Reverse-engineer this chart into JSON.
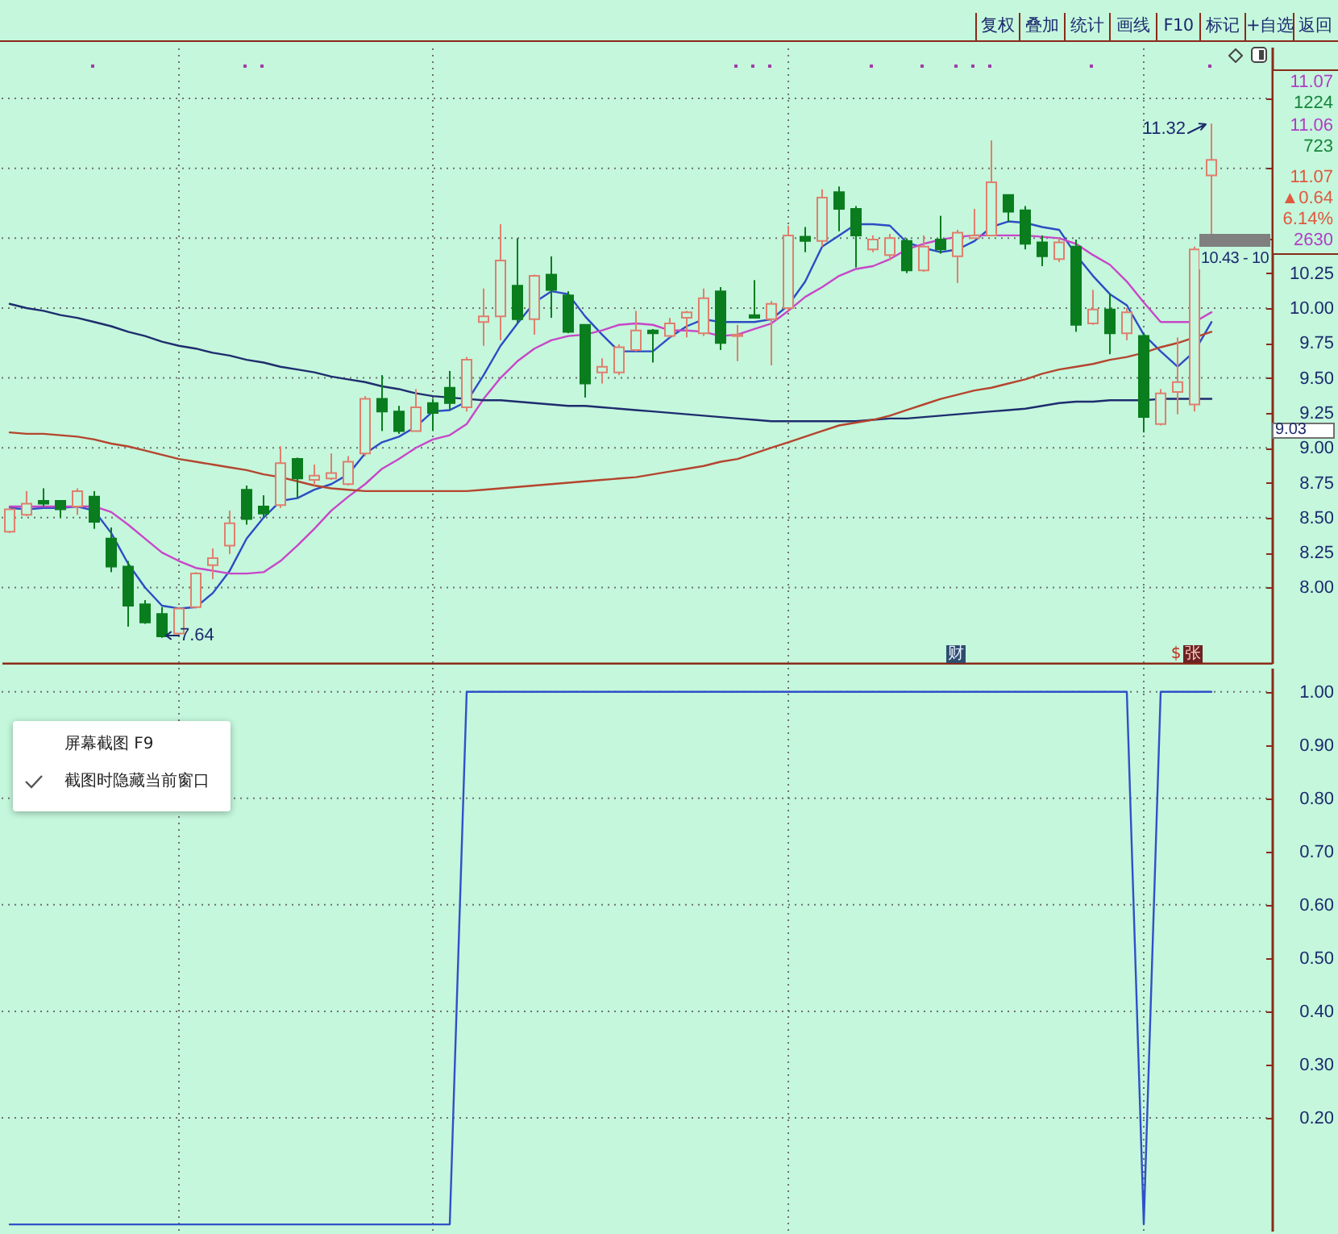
{
  "chart_data": [
    {
      "type": "candlestick",
      "categories": [
        null,
        null,
        null,
        null,
        null,
        null,
        null,
        null,
        null,
        null,
        null,
        null,
        null,
        null,
        null,
        null,
        null,
        null,
        null,
        null,
        null,
        null,
        null,
        null,
        null,
        null,
        null,
        null,
        null,
        null,
        null,
        null,
        null,
        null,
        null,
        null,
        null,
        null,
        null,
        null,
        null,
        null,
        null,
        null,
        null,
        null,
        null,
        null,
        null,
        null,
        null,
        null,
        null,
        null,
        null,
        null,
        null,
        null,
        null,
        null,
        null,
        null,
        null,
        null,
        null,
        null,
        null,
        null,
        null,
        null,
        null,
        null
      ],
      "ohlc": [
        [
          8.4,
          8.57,
          8.39,
          8.56
        ],
        [
          8.52,
          8.69,
          8.51,
          8.6
        ],
        [
          8.62,
          8.71,
          8.58,
          8.6
        ],
        [
          8.62,
          8.62,
          8.5,
          8.56
        ],
        [
          8.58,
          8.71,
          8.52,
          8.69
        ],
        [
          8.65,
          8.69,
          8.42,
          8.47
        ],
        [
          8.35,
          8.43,
          8.11,
          8.15
        ],
        [
          8.15,
          8.19,
          7.72,
          7.87
        ],
        [
          7.88,
          7.91,
          7.74,
          7.75
        ],
        [
          7.81,
          7.86,
          7.64,
          7.65
        ],
        [
          7.67,
          7.86,
          7.66,
          7.85
        ],
        [
          7.86,
          8.11,
          7.85,
          8.1
        ],
        [
          8.16,
          8.28,
          8.06,
          8.21
        ],
        [
          8.3,
          8.55,
          8.24,
          8.46
        ],
        [
          8.7,
          8.73,
          8.45,
          8.49
        ],
        [
          8.58,
          8.66,
          8.5,
          8.53
        ],
        [
          8.59,
          9.01,
          8.57,
          8.89
        ],
        [
          8.92,
          8.93,
          8.64,
          8.78
        ],
        [
          8.77,
          8.88,
          8.73,
          8.8
        ],
        [
          8.78,
          8.96,
          8.77,
          8.82
        ],
        [
          8.74,
          8.94,
          8.73,
          8.9
        ],
        [
          8.96,
          9.37,
          8.94,
          9.35
        ],
        [
          9.35,
          9.52,
          9.12,
          9.26
        ],
        [
          9.26,
          9.3,
          9.1,
          9.12
        ],
        [
          9.12,
          9.42,
          9.12,
          9.29
        ],
        [
          9.32,
          9.35,
          9.12,
          9.25
        ],
        [
          9.43,
          9.55,
          9.27,
          9.32
        ],
        [
          9.29,
          9.65,
          9.26,
          9.63
        ],
        [
          9.9,
          10.14,
          9.73,
          9.94
        ],
        [
          9.94,
          10.6,
          9.77,
          10.34
        ],
        [
          10.16,
          10.5,
          9.89,
          9.92
        ],
        [
          9.92,
          10.24,
          9.81,
          10.23
        ],
        [
          10.24,
          10.37,
          9.93,
          10.13
        ],
        [
          10.09,
          10.12,
          9.82,
          9.83
        ],
        [
          9.88,
          9.88,
          9.36,
          9.46
        ],
        [
          9.54,
          9.64,
          9.46,
          9.58
        ],
        [
          9.54,
          9.74,
          9.52,
          9.72
        ],
        [
          9.7,
          9.98,
          9.69,
          9.84
        ],
        [
          9.84,
          9.85,
          9.61,
          9.82
        ],
        [
          9.8,
          9.93,
          9.79,
          9.89
        ],
        [
          9.93,
          9.98,
          9.79,
          9.97
        ],
        [
          9.82,
          10.14,
          9.8,
          10.07
        ],
        [
          10.12,
          10.15,
          9.7,
          9.75
        ],
        [
          9.8,
          9.88,
          9.62,
          9.81
        ],
        [
          9.95,
          10.2,
          9.93,
          9.93
        ],
        [
          9.92,
          10.05,
          9.59,
          10.03
        ],
        [
          10.0,
          10.59,
          9.98,
          10.52
        ],
        [
          10.51,
          10.58,
          10.4,
          10.48
        ],
        [
          10.48,
          10.85,
          10.44,
          10.79
        ],
        [
          10.83,
          10.87,
          10.55,
          10.71
        ],
        [
          10.71,
          10.73,
          10.29,
          10.52
        ],
        [
          10.42,
          10.52,
          10.4,
          10.49
        ],
        [
          10.38,
          10.53,
          10.34,
          10.5
        ],
        [
          10.48,
          10.5,
          10.25,
          10.27
        ],
        [
          10.27,
          10.52,
          10.26,
          10.44
        ],
        [
          10.49,
          10.66,
          10.39,
          10.42
        ],
        [
          10.37,
          10.56,
          10.18,
          10.54
        ],
        [
          10.5,
          10.71,
          10.5,
          10.52
        ],
        [
          10.52,
          11.2,
          10.52,
          10.9
        ],
        [
          10.81,
          10.81,
          10.62,
          10.69
        ],
        [
          10.7,
          10.73,
          10.42,
          10.46
        ],
        [
          10.47,
          10.52,
          10.3,
          10.37
        ],
        [
          10.35,
          10.5,
          10.33,
          10.47
        ],
        [
          10.44,
          10.49,
          9.83,
          9.88
        ],
        [
          9.89,
          10.13,
          9.88,
          9.99
        ],
        [
          9.99,
          10.1,
          9.67,
          9.82
        ],
        [
          9.82,
          10.0,
          9.77,
          9.97
        ],
        [
          9.8,
          9.82,
          9.11,
          9.22
        ],
        [
          9.17,
          9.42,
          9.16,
          9.39
        ],
        [
          9.4,
          9.79,
          9.24,
          9.47
        ],
        [
          9.31,
          10.44,
          9.26,
          10.42
        ],
        [
          10.95,
          11.32,
          10.52,
          11.06
        ]
      ],
      "colors": [
        "#e07f6e",
        "#e07f6e",
        "#0a7d1e",
        "#0a7d1e",
        "#e07f6e",
        "#0a7d1e",
        "#0a7d1e",
        "#0a7d1e",
        "#0a7d1e",
        "#0a7d1e",
        "#e07f6e",
        "#e07f6e",
        "#e07f6e",
        "#e07f6e",
        "#0a7d1e",
        "#0a7d1e",
        "#e07f6e",
        "#0a7d1e",
        "#e07f6e",
        "#e07f6e",
        "#e07f6e",
        "#e07f6e",
        "#0a7d1e",
        "#0a7d1e",
        "#e07f6e",
        "#0a7d1e",
        "#0a7d1e",
        "#e07f6e",
        "#e07f6e",
        "#e07f6e",
        "#0a7d1e",
        "#e07f6e",
        "#0a7d1e",
        "#0a7d1e",
        "#0a7d1e",
        "#e07f6e",
        "#e07f6e",
        "#e07f6e",
        "#0a7d1e",
        "#e07f6e",
        "#e07f6e",
        "#e07f6e",
        "#0a7d1e",
        "#e07f6e",
        "#0a7d1e",
        "#e07f6e",
        "#e07f6e",
        "#0a7d1e",
        "#e07f6e",
        "#0a7d1e",
        "#0a7d1e",
        "#e07f6e",
        "#e07f6e",
        "#0a7d1e",
        "#e07f6e",
        "#0a7d1e",
        "#e07f6e",
        "#e07f6e",
        "#e07f6e",
        "#0a7d1e",
        "#0a7d1e",
        "#0a7d1e",
        "#e07f6e",
        "#0a7d1e",
        "#e07f6e",
        "#0a7d1e",
        "#e07f6e",
        "#0a7d1e",
        "#e07f6e",
        "#e07f6e",
        "#e07f6e",
        "#e07f6e"
      ],
      "series": [
        {
          "type": "line",
          "color": "#2c4cc4",
          "values": [
            8.57,
            8.56,
            8.57,
            8.57,
            8.58,
            8.55,
            8.39,
            8.17,
            8.0,
            7.87,
            7.85,
            7.86,
            7.96,
            8.12,
            8.35,
            8.5,
            8.62,
            8.64,
            8.7,
            8.74,
            8.81,
            8.96,
            9.04,
            9.08,
            9.15,
            9.26,
            9.27,
            9.33,
            9.52,
            9.73,
            9.89,
            10.04,
            10.12,
            10.1,
            9.94,
            9.81,
            9.69,
            9.69,
            9.69,
            9.79,
            9.87,
            9.92,
            9.9,
            9.9,
            9.9,
            9.92,
            10.02,
            10.19,
            10.44,
            10.52,
            10.6,
            10.6,
            10.59,
            10.47,
            10.43,
            10.4,
            10.42,
            10.48,
            10.58,
            10.62,
            10.61,
            10.58,
            10.56,
            10.38,
            10.23,
            10.1,
            10.02,
            9.81,
            9.69,
            9.58,
            9.69,
            9.9
          ]
        },
        {
          "type": "line",
          "color": "#c846c8",
          "values": [
            8.58,
            8.58,
            8.58,
            8.58,
            8.58,
            8.58,
            8.54,
            8.45,
            8.35,
            8.25,
            8.19,
            8.14,
            8.12,
            8.1,
            8.1,
            8.11,
            8.19,
            8.3,
            8.42,
            8.55,
            8.65,
            8.74,
            8.85,
            8.92,
            9.0,
            9.06,
            9.09,
            9.17,
            9.35,
            9.5,
            9.62,
            9.71,
            9.77,
            9.8,
            9.81,
            9.84,
            9.88,
            9.89,
            9.88,
            9.84,
            9.84,
            9.83,
            9.8,
            9.81,
            9.85,
            9.89,
            9.98,
            10.08,
            10.15,
            10.23,
            10.28,
            10.3,
            10.35,
            10.42,
            10.46,
            10.49,
            10.51,
            10.52,
            10.52,
            10.52,
            10.52,
            10.51,
            10.5,
            10.46,
            10.38,
            10.31,
            10.19,
            10.04,
            9.9,
            9.9,
            9.9,
            9.97
          ]
        },
        {
          "type": "line",
          "color": "#1e2d6e",
          "values": [
            10.03,
            10.0,
            9.98,
            9.95,
            9.93,
            9.9,
            9.87,
            9.83,
            9.8,
            9.76,
            9.73,
            9.71,
            9.68,
            9.66,
            9.63,
            9.61,
            9.58,
            9.56,
            9.54,
            9.51,
            9.49,
            9.47,
            9.44,
            9.42,
            9.39,
            9.37,
            9.36,
            9.35,
            9.34,
            9.34,
            9.33,
            9.32,
            9.31,
            9.3,
            9.3,
            9.29,
            9.28,
            9.27,
            9.26,
            9.25,
            9.24,
            9.23,
            9.22,
            9.21,
            9.2,
            9.19,
            9.19,
            9.19,
            9.19,
            9.19,
            9.19,
            9.2,
            9.21,
            9.21,
            9.22,
            9.23,
            9.24,
            9.25,
            9.26,
            9.27,
            9.28,
            9.3,
            9.32,
            9.33,
            9.33,
            9.34,
            9.34,
            9.34,
            9.35,
            9.35,
            9.35,
            9.35
          ]
        },
        {
          "type": "line",
          "color": "#b5452e",
          "values": [
            9.11,
            9.1,
            9.1,
            9.09,
            9.08,
            9.06,
            9.03,
            9.01,
            8.98,
            8.95,
            8.92,
            8.9,
            8.88,
            8.86,
            8.84,
            8.81,
            8.79,
            8.76,
            8.73,
            8.71,
            8.7,
            8.69,
            8.69,
            8.69,
            8.69,
            8.69,
            8.69,
            8.69,
            8.7,
            8.71,
            8.72,
            8.73,
            8.74,
            8.75,
            8.76,
            8.77,
            8.78,
            8.79,
            8.81,
            8.83,
            8.85,
            8.87,
            8.9,
            8.92,
            8.96,
            9.0,
            9.04,
            9.08,
            9.12,
            9.16,
            9.18,
            9.2,
            9.23,
            9.27,
            9.31,
            9.35,
            9.38,
            9.41,
            9.43,
            9.46,
            9.49,
            9.53,
            9.56,
            9.58,
            9.6,
            9.63,
            9.65,
            9.68,
            9.72,
            9.75,
            9.79,
            9.83
          ]
        }
      ],
      "ylim": [
        7.46,
        11.87
      ],
      "yticks": [
        {
          "value": 8,
          "label": "8.00"
        },
        {
          "value": 8.25,
          "label": "8.25"
        },
        {
          "value": 8.5,
          "label": "8.50"
        },
        {
          "value": 8.75,
          "label": "8.75"
        },
        {
          "value": 9,
          "label": "9.00"
        },
        {
          "value": 9.25,
          "label": "9.25"
        },
        {
          "value": 9.5,
          "label": "9.50"
        },
        {
          "value": 9.75,
          "label": "9.75"
        },
        {
          "value": 10,
          "label": "10.00"
        },
        {
          "value": 10.25,
          "label": "10.25"
        },
        {
          "value": 10.5,
          "label": null
        },
        {
          "value": 11,
          "label": null
        },
        {
          "value": 11.5,
          "label": null
        }
      ],
      "grid": true,
      "tick_labels": "y",
      "annotations": [
        "复权",
        "叠加",
        "统计",
        "画线",
        "F10",
        "标记",
        "+自选",
        "返回",
        "11.07",
        "1224",
        "11.06",
        "723",
        "11.07",
        "▲0.64",
        "6.14%",
        "2630",
        "11.32",
        "7.64",
        "10.43 - 10",
        "9.03",
        "财",
        "$",
        "张"
      ]
    },
    {
      "type": "line",
      "categories": [
        null,
        null,
        null,
        null,
        null,
        null,
        null,
        null,
        null,
        null,
        null,
        null,
        null,
        null,
        null,
        null,
        null,
        null,
        null,
        null,
        null,
        null,
        null,
        null,
        null,
        null,
        null,
        null,
        null,
        null,
        null,
        null,
        null,
        null,
        null,
        null,
        null,
        null,
        null,
        null,
        null,
        null,
        null,
        null,
        null,
        null,
        null,
        null,
        null,
        null,
        null,
        null,
        null,
        null,
        null,
        null,
        null,
        null,
        null,
        null,
        null,
        null,
        null,
        null,
        null,
        null,
        null,
        null,
        null,
        null,
        null,
        null
      ],
      "series": [
        {
          "color": "#3050c8",
          "values": [
            0,
            0,
            0,
            0,
            0,
            0,
            0,
            0,
            0,
            0,
            0,
            0,
            0,
            0,
            0,
            0,
            0,
            0,
            0,
            0,
            0,
            0,
            0,
            0,
            0,
            0,
            0,
            1,
            1,
            1,
            1,
            1,
            1,
            1,
            1,
            1,
            1,
            1,
            1,
            1,
            1,
            1,
            1,
            1,
            1,
            1,
            1,
            1,
            1,
            1,
            1,
            1,
            1,
            1,
            1,
            1,
            1,
            1,
            1,
            1,
            1,
            1,
            1,
            1,
            1,
            1,
            1,
            0,
            1,
            1,
            1,
            1
          ]
        }
      ],
      "ylim": [
        -0.012,
        1.045
      ],
      "yticks": [
        {
          "value": 0.2,
          "label": "0.20"
        },
        {
          "value": 0.3,
          "label": "0.30"
        },
        {
          "value": 0.4,
          "label": "0.40"
        },
        {
          "value": 0.5,
          "label": "0.50"
        },
        {
          "value": 0.6,
          "label": "0.60"
        },
        {
          "value": 0.7,
          "label": "0.70"
        },
        {
          "value": 0.8,
          "label": "0.80"
        },
        {
          "value": 0.9,
          "label": "0.90"
        },
        {
          "value": 1,
          "label": "1.00"
        }
      ],
      "grid": true,
      "tick_labels": "y",
      "annotations": [
        "屏幕截图 F9",
        "截图时隐藏当前窗口"
      ]
    }
  ]
}
